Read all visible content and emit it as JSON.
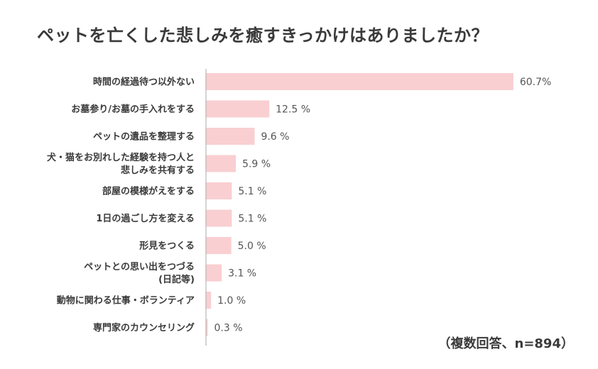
{
  "colors": {
    "bar": "#f9cfd2",
    "axis": "#aaaaaa",
    "text": "#3a3a3a"
  },
  "note": "（複数回答、n=894）",
  "chart_data": {
    "type": "bar",
    "orientation": "horizontal",
    "title": "ペットを亡くした悲しみを癒すきっかけはありましたか？",
    "categories": [
      [
        "時間の経過待つ以外ない"
      ],
      [
        "お墓参り/お墓の手入れをする"
      ],
      [
        "ペットの遺品を整理する"
      ],
      [
        "犬・猫をお別れした経験を持つ人と",
        "悲しみを共有する"
      ],
      [
        "部屋の模様がえをする"
      ],
      [
        "1日の過ごし方を変える"
      ],
      [
        "形見をつくる"
      ],
      [
        "ペットとの思い出をつづる",
        "(日記等)"
      ],
      [
        "動物に関わる仕事・ボランティア"
      ],
      [
        "専門家のカウンセリング"
      ]
    ],
    "values": [
      60.7,
      12.5,
      9.6,
      5.9,
      5.1,
      5.1,
      5.0,
      3.1,
      1.0,
      0.3
    ],
    "value_labels": [
      "60.7%",
      "12.5 %",
      "9.6 %",
      "5.9 %",
      "5.1 %",
      "5.1 %",
      "5.0 %",
      "3.1 %",
      "1.0 %",
      "0.3 %"
    ],
    "unit": "%",
    "xlim": [
      0,
      61
    ],
    "grid": false,
    "legend": "none"
  }
}
